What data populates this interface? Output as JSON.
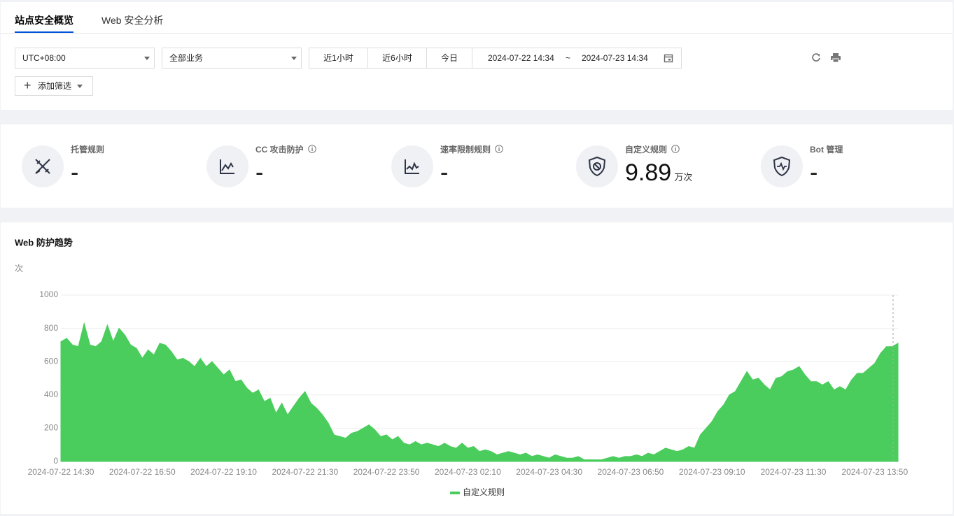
{
  "tabs": [
    "站点安全概览",
    "Web 安全分析"
  ],
  "filters": {
    "timezone": "UTC+08:00",
    "business": "全部业务",
    "quick_ranges": [
      "近1小时",
      "近6小时",
      "今日"
    ],
    "start": "2024-07-22 14:34",
    "separator": "~",
    "end": "2024-07-23 14:34",
    "add_filter": "添加筛选"
  },
  "stats": [
    {
      "label": "托管规则",
      "value": "-"
    },
    {
      "label": "CC 攻击防护",
      "value": "-"
    },
    {
      "label": "速率限制规则",
      "value": "-"
    },
    {
      "label": "自定义规则",
      "value": 9.89,
      "unit": "万次"
    },
    {
      "label": "Bot 管理",
      "value": "-"
    }
  ],
  "chart_data": {
    "type": "area",
    "title": "Web 防护趋势",
    "y_label": "次",
    "categories": [
      "2024-07-22 14:30",
      null,
      null,
      null,
      null,
      null,
      null,
      null,
      null,
      null,
      null,
      null,
      null,
      null,
      "2024-07-22 16:50",
      null,
      null,
      null,
      null,
      null,
      null,
      null,
      null,
      null,
      null,
      null,
      null,
      null,
      "2024-07-22 19:10",
      null,
      null,
      null,
      null,
      null,
      null,
      null,
      null,
      null,
      null,
      null,
      null,
      null,
      "2024-07-22 21:30",
      null,
      null,
      null,
      null,
      null,
      null,
      null,
      null,
      null,
      null,
      null,
      null,
      null,
      "2024-07-22 23:50",
      null,
      null,
      null,
      null,
      null,
      null,
      null,
      null,
      null,
      null,
      null,
      null,
      null,
      "2024-07-23 02:10",
      null,
      null,
      null,
      null,
      null,
      null,
      null,
      null,
      null,
      null,
      null,
      null,
      null,
      "2024-07-23 04:30",
      null,
      null,
      null,
      null,
      null,
      null,
      null,
      null,
      null,
      null,
      null,
      null,
      null,
      "2024-07-23 06:50",
      null,
      null,
      null,
      null,
      null,
      null,
      null,
      null,
      null,
      null,
      null,
      null,
      null,
      "2024-07-23 09:10",
      null,
      null,
      null,
      null,
      null,
      null,
      null,
      null,
      null,
      null,
      null,
      null,
      null,
      "2024-07-23 11:30",
      null,
      null,
      null,
      null,
      null,
      null,
      null,
      null,
      null,
      null,
      null,
      null,
      null,
      "2024-07-23 13:50",
      null,
      null,
      null,
      null
    ],
    "series": [
      {
        "name": "自定义规则",
        "color": "#4acd5c",
        "values": [
          720,
          740,
          700,
          690,
          830,
          700,
          690,
          720,
          820,
          720,
          800,
          760,
          700,
          680,
          620,
          670,
          640,
          710,
          700,
          660,
          610,
          620,
          600,
          570,
          620,
          570,
          600,
          560,
          520,
          550,
          480,
          490,
          440,
          410,
          430,
          360,
          380,
          290,
          350,
          280,
          330,
          380,
          420,
          350,
          320,
          280,
          230,
          160,
          150,
          140,
          170,
          180,
          200,
          220,
          190,
          150,
          160,
          130,
          150,
          110,
          100,
          120,
          100,
          110,
          100,
          90,
          110,
          90,
          80,
          110,
          80,
          90,
          60,
          70,
          60,
          40,
          50,
          60,
          50,
          40,
          50,
          30,
          40,
          30,
          20,
          40,
          30,
          20,
          20,
          30,
          10,
          10,
          10,
          10,
          20,
          30,
          20,
          30,
          30,
          40,
          30,
          50,
          40,
          60,
          80,
          70,
          60,
          70,
          90,
          80,
          160,
          200,
          240,
          300,
          340,
          400,
          420,
          480,
          540,
          490,
          500,
          460,
          430,
          500,
          510,
          540,
          550,
          570,
          520,
          480,
          480,
          460,
          480,
          430,
          450,
          430,
          490,
          530,
          530,
          560,
          590,
          650,
          690,
          690,
          710
        ]
      }
    ],
    "ylim": [
      0,
      1000
    ],
    "yticks": [
      0,
      200,
      400,
      600,
      800,
      1000
    ],
    "grid": true,
    "legend": "bottom"
  }
}
